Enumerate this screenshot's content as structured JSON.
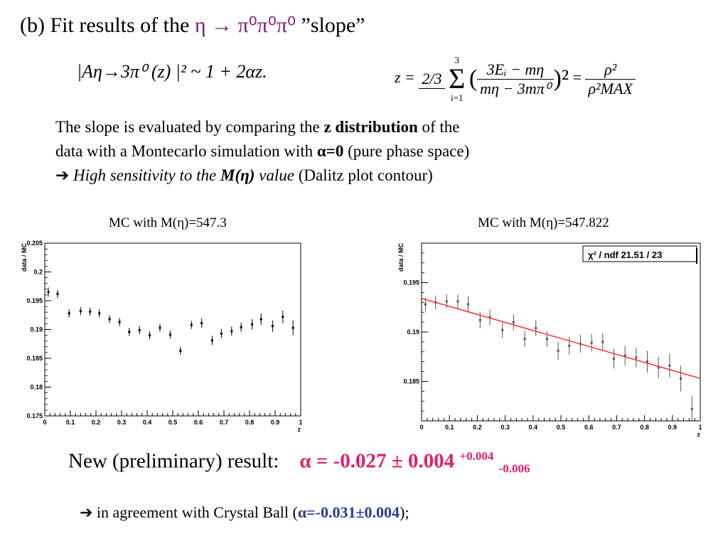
{
  "title": {
    "prefix": "(b) Fit results of the ",
    "reaction": "η  → π⁰π⁰π⁰",
    "suffix": " ”slope”"
  },
  "formulas": {
    "amplitude": "|Aη→3π⁰ (z) |² ~ 1 + 2αz.",
    "z_lhs": "z =",
    "z_coef": "2/3",
    "z_sum_top": "3",
    "z_sum_bottom": "i=1",
    "z_num": "3Eᵢ − mη",
    "z_den": "mη − 3mπ⁰",
    "z_rho_num": "ρ²",
    "z_rho_den": "ρ²MAX"
  },
  "description": {
    "l1a": "The slope is evaluated by comparing the ",
    "l1b": "z distribution",
    "l1c": " of the",
    "l2a": "data with a Montecarlo simulation with ",
    "l2b": "α=0",
    "l2c": " (pure phase space)",
    "l3a": "➔ ",
    "l3b": "High sensitivity to the ",
    "l3c": "M(η)",
    "l3d": " value",
    "l3e": " (Dalitz plot contour)"
  },
  "plot_labels": {
    "left": "MC with M(η)=547.3",
    "right": "MC with M(η)=547.822"
  },
  "chart_data": [
    {
      "type": "scatter",
      "title": "MC with M(η)=547.3",
      "xlabel": "z",
      "ylabel": "data / MC",
      "xlim": [
        0,
        1
      ],
      "ylim": [
        0.175,
        0.205
      ],
      "xticks": [
        "0",
        "0.1",
        "0.2",
        "0.3",
        "0.4",
        "0.5",
        "0.6",
        "0.7",
        "0.8",
        "0.9",
        "1"
      ],
      "yticks": [
        "0.175",
        "0.18",
        "0.185",
        "0.19",
        "0.195",
        "0.2",
        "0.205"
      ],
      "x": [
        0.014,
        0.05,
        0.095,
        0.14,
        0.177,
        0.213,
        0.253,
        0.292,
        0.33,
        0.37,
        0.41,
        0.45,
        0.49,
        0.53,
        0.573,
        0.613,
        0.654,
        0.69,
        0.73,
        0.767,
        0.81,
        0.845,
        0.89,
        0.93,
        0.97
      ],
      "y": [
        0.1965,
        0.1962,
        0.1928,
        0.1932,
        0.1931,
        0.1928,
        0.1918,
        0.1913,
        0.1896,
        0.1899,
        0.189,
        0.1903,
        0.1891,
        0.1863,
        0.1908,
        0.1911,
        0.1881,
        0.1893,
        0.1897,
        0.1904,
        0.1909,
        0.1918,
        0.1906,
        0.1922,
        0.1903
      ],
      "yerr": [
        0.0008,
        0.0007,
        0.0007,
        0.0007,
        0.0007,
        0.0007,
        0.0007,
        0.0007,
        0.0007,
        0.0007,
        0.0007,
        0.0007,
        0.0007,
        0.0007,
        0.0007,
        0.0008,
        0.0008,
        0.0008,
        0.0008,
        0.0008,
        0.0009,
        0.001,
        0.001,
        0.0011,
        0.0013
      ]
    },
    {
      "type": "scatter",
      "title": "MC with M(η)=547.822",
      "xlabel": "z",
      "ylabel": "data / MC",
      "xlim": [
        0,
        1
      ],
      "ylim": [
        0.181,
        0.199
      ],
      "xticks": [
        "0",
        "0.1",
        "0.2",
        "0.3",
        "0.4",
        "0.5",
        "0.6",
        "0.7",
        "0.8",
        "0.9",
        "1"
      ],
      "yticks": [
        "0.185",
        "0.19",
        "0.195"
      ],
      "legend": "χ² / ndf  21.51 / 23",
      "x": [
        0.014,
        0.05,
        0.09,
        0.13,
        0.167,
        0.21,
        0.245,
        0.29,
        0.33,
        0.37,
        0.41,
        0.45,
        0.49,
        0.53,
        0.57,
        0.61,
        0.65,
        0.69,
        0.73,
        0.77,
        0.81,
        0.85,
        0.89,
        0.93,
        0.97
      ],
      "y": [
        0.1928,
        0.193,
        0.1931,
        0.1931,
        0.1928,
        0.1912,
        0.1915,
        0.1902,
        0.191,
        0.1893,
        0.1904,
        0.1893,
        0.1881,
        0.1886,
        0.1888,
        0.1889,
        0.189,
        0.1873,
        0.1876,
        0.1874,
        0.187,
        0.1864,
        0.1866,
        0.1853,
        0.1822
      ],
      "yerr": [
        0.0007,
        0.0007,
        0.0007,
        0.0007,
        0.0008,
        0.0008,
        0.0008,
        0.0008,
        0.0008,
        0.0008,
        0.0008,
        0.0008,
        0.0009,
        0.0009,
        0.0009,
        0.0009,
        0.0009,
        0.001,
        0.001,
        0.001,
        0.0011,
        0.0011,
        0.0012,
        0.0013,
        0.0013
      ],
      "fit_line": {
        "x": [
          0,
          1
        ],
        "y": [
          0.1934,
          0.1853
        ],
        "color": "#ff3030"
      }
    }
  ],
  "result": {
    "label": "New (preliminary) result:",
    "value": "α = -0.027 ± 0.004",
    "sup": "+0.004",
    "sub": "-0.006"
  },
  "agreement": {
    "prefix": "➔ in agreement with Crystal Ball (",
    "value": "α=-0.031±0.004",
    "suffix": ");"
  },
  "colors": {
    "title_eta": "#7a1f6b",
    "result": "#e0206a",
    "crystal_ball": "#2b3a9b",
    "fit_line": "#ff3030"
  }
}
